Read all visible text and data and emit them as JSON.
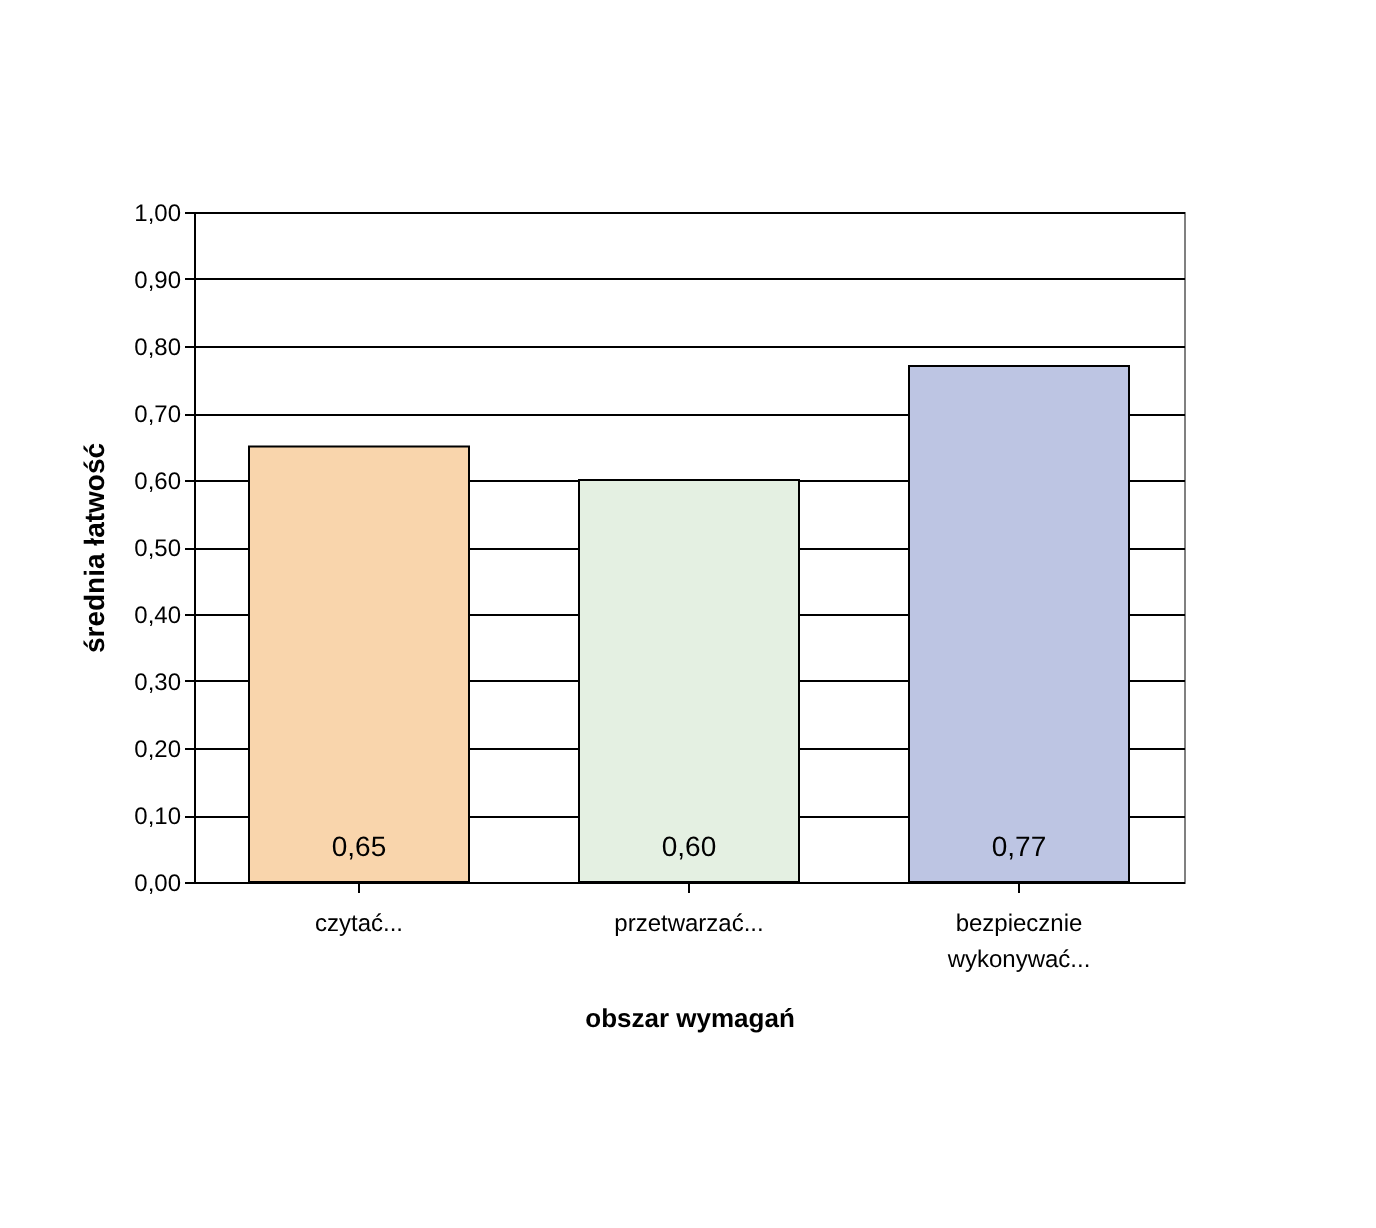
{
  "chart_data": {
    "type": "bar",
    "xlabel": "obszar wymagań",
    "ylabel": "średnia łatwość",
    "categories": [
      "czytać...",
      "przetwarzać...",
      "bezpiecznie wykonywać..."
    ],
    "values": [
      0.65,
      0.6,
      0.77
    ],
    "colors": [
      "#f9d5ac",
      "#e4f0e2",
      "#bdc5e3"
    ],
    "value_labels": [
      "0,65",
      "0,60",
      "0,77"
    ],
    "ylim": [
      0,
      1
    ],
    "yticks": [
      {
        "value": 0,
        "label": "0,00"
      },
      {
        "value": 0.1,
        "label": "0,10"
      },
      {
        "value": 0.2,
        "label": "0,20"
      },
      {
        "value": 0.3,
        "label": "0,30"
      },
      {
        "value": 0.4,
        "label": "0,40"
      },
      {
        "value": 0.5,
        "label": "0,50"
      },
      {
        "value": 0.6,
        "label": "0,60"
      },
      {
        "value": 0.7,
        "label": "0,70"
      },
      {
        "value": 0.8,
        "label": "0,80"
      },
      {
        "value": 0.9,
        "label": "0,90"
      },
      {
        "value": 1,
        "label": "1,00"
      }
    ],
    "grid": "y",
    "legend": false
  }
}
